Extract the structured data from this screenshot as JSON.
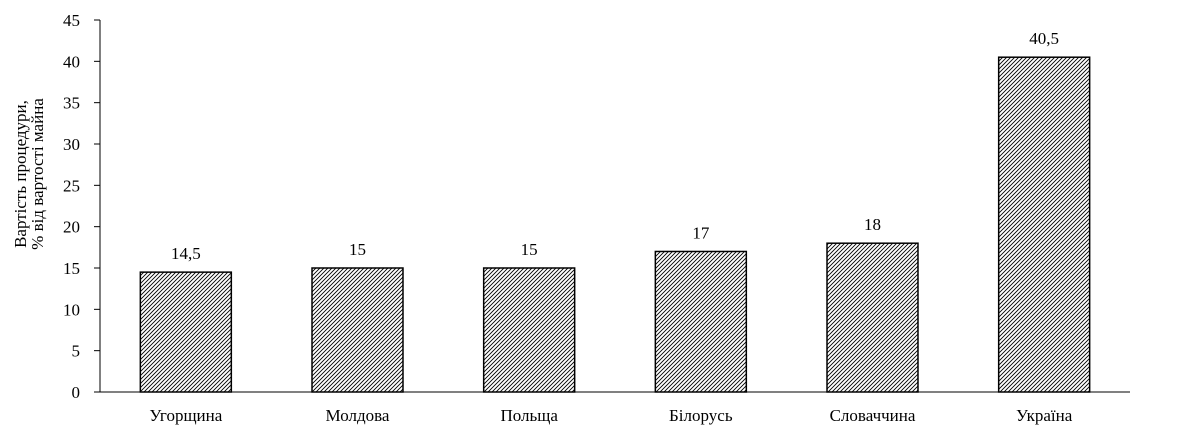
{
  "chart_data": {
    "type": "bar",
    "title": "",
    "xlabel": "",
    "ylabel_lines": [
      "Вартість процедури,",
      "% від вартості майна"
    ],
    "ylim": [
      0,
      45
    ],
    "yticks": [
      0,
      5,
      10,
      15,
      20,
      25,
      30,
      35,
      40,
      45
    ],
    "categories": [
      "Угорщина",
      "Молдова",
      "Польща",
      "Білорусь",
      "Словаччина",
      "Україна"
    ],
    "values": [
      14.5,
      15,
      15,
      17,
      18,
      40.5
    ],
    "data_labels": [
      "14,5",
      "15",
      "15",
      "17",
      "18",
      "40,5"
    ],
    "grid": false,
    "legend": "none",
    "bar_fill": "diagonal-hatch",
    "colors": {
      "bar_stroke": "#000000",
      "hatch": "#000000",
      "background": "#ffffff"
    }
  }
}
